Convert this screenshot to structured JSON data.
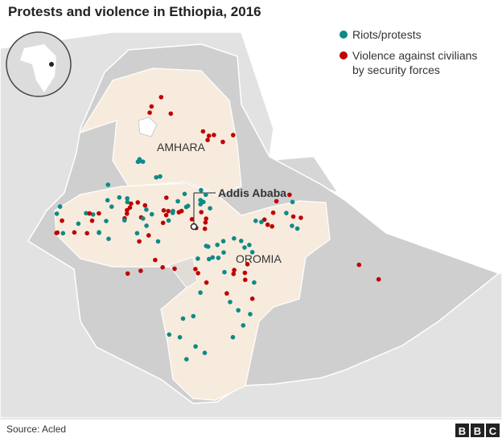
{
  "title": "Protests and violence in Ethiopia, 2016",
  "legend": [
    {
      "lines": [
        "Riots/protests"
      ],
      "color": "#0e8a87"
    },
    {
      "lines": [
        "Violence against civilians",
        "by security forces"
      ],
      "color": "#c00000"
    }
  ],
  "regions": [
    "AMHARA",
    "OROMIA"
  ],
  "city": "Addis Ababa",
  "source": "Source: Acled",
  "logo": [
    "B",
    "B",
    "C"
  ]
}
